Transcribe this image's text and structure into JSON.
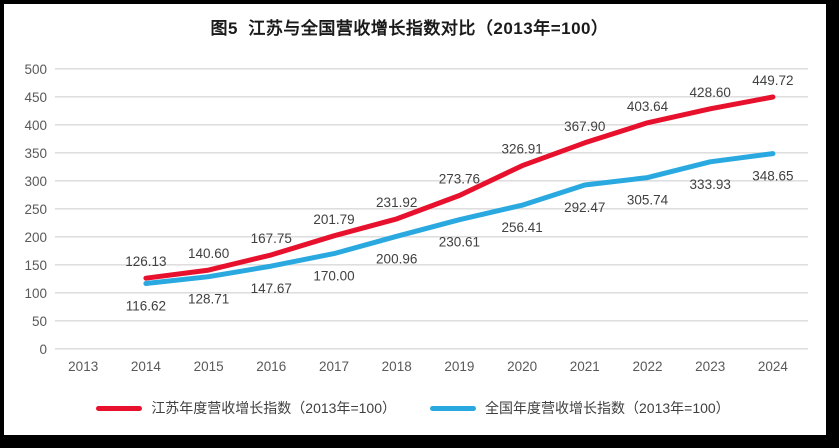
{
  "title": "图5  江苏与全国营收增长指数对比（2013年=100）",
  "colors": {
    "jiangsu_line": "#e8112d",
    "national_line": "#29a9e0",
    "gridline": "#d9d9d9",
    "axis_text": "#595959",
    "data_label": "#404040",
    "frame": "#000000"
  },
  "chart_data": {
    "type": "line",
    "title": "图5  江苏与全国营收增长指数对比（2013年=100）",
    "x": [
      "2013",
      "2014",
      "2015",
      "2016",
      "2017",
      "2018",
      "2019",
      "2020",
      "2021",
      "2022",
      "2023",
      "2024"
    ],
    "series": [
      {
        "name": "江苏年度营收增长指数（2013年=100）",
        "color": "#e8112d",
        "values": [
          null,
          126.13,
          140.6,
          167.75,
          201.79,
          231.92,
          273.76,
          326.91,
          367.9,
          403.64,
          428.6,
          449.72
        ],
        "labels": [
          null,
          "126.13",
          "140.60",
          "167.75",
          "201.79",
          "231.92",
          "273.76",
          "326.91",
          "367.90",
          "403.64",
          "428.60",
          "449.72"
        ],
        "label_position": "above"
      },
      {
        "name": "全国年度营收增长指数（2013年=100）",
        "color": "#29a9e0",
        "values": [
          null,
          116.62,
          128.71,
          147.67,
          170.0,
          200.96,
          230.61,
          256.41,
          292.47,
          305.74,
          333.93,
          348.65
        ],
        "labels": [
          null,
          "116.62",
          "128.71",
          "147.67",
          "170.00",
          "200.96",
          "230.61",
          "256.41",
          "292.47",
          "305.74",
          "333.93",
          "348.65"
        ],
        "label_position": "below"
      }
    ],
    "ylim": [
      0,
      500
    ],
    "yticks": [
      "0",
      "50",
      "100",
      "150",
      "200",
      "250",
      "300",
      "350",
      "400",
      "450",
      "500"
    ],
    "grid": true,
    "legend_position": "bottom"
  }
}
